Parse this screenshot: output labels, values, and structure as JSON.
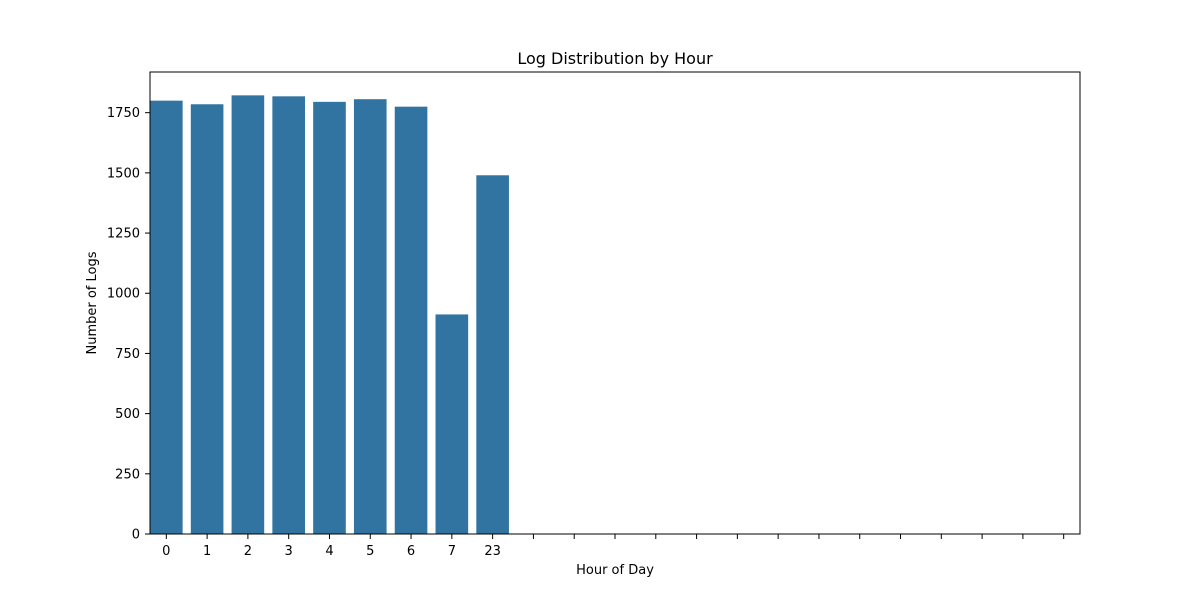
{
  "chart_data": {
    "type": "bar",
    "title": "Log Distribution by Hour",
    "xlabel": "Hour of Day",
    "ylabel": "Number of Logs",
    "categories": [
      "0",
      "1",
      "2",
      "3",
      "4",
      "5",
      "6",
      "7",
      "23"
    ],
    "values": [
      1800,
      1785,
      1822,
      1818,
      1795,
      1806,
      1775,
      912,
      1490
    ],
    "empty_category_slots": 14,
    "ylim": [
      0,
      1919
    ],
    "yticks": [
      0,
      250,
      500,
      750,
      1000,
      1250,
      1500,
      1750
    ],
    "grid": false,
    "legend": "none",
    "bar_color": "#3274a1"
  }
}
